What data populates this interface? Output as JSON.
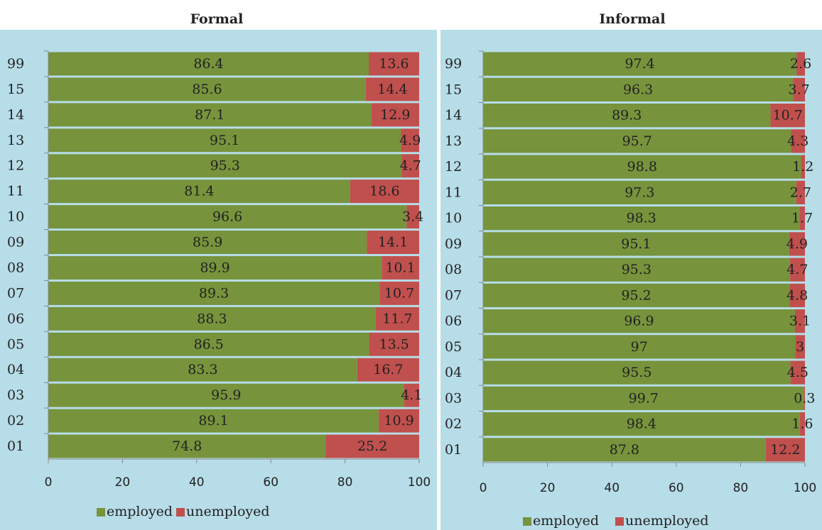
{
  "chart_data": [
    {
      "type": "bar",
      "orientation": "horizontal",
      "stacked": true,
      "title": "Formal",
      "categories": [
        "99",
        "15",
        "14",
        "13",
        "12",
        "11",
        "10",
        "09",
        "08",
        "07",
        "06",
        "05",
        "04",
        "03",
        "02",
        "01"
      ],
      "series": [
        {
          "name": "employed",
          "color": "#77933c",
          "values": [
            86.4,
            85.6,
            87.1,
            95.1,
            95.3,
            81.4,
            96.6,
            85.9,
            89.9,
            89.3,
            88.3,
            86.5,
            83.3,
            95.9,
            89.1,
            74.8
          ]
        },
        {
          "name": "unemployed",
          "color": "#c0504d",
          "values": [
            13.6,
            14.4,
            12.9,
            4.9,
            4.7,
            18.6,
            3.4,
            14.1,
            10.1,
            10.7,
            11.7,
            13.5,
            16.7,
            4.1,
            10.9,
            25.2
          ]
        }
      ],
      "xlim": [
        0,
        100
      ],
      "xticks": [
        0,
        20,
        40,
        60,
        80,
        100
      ],
      "legend": "bottom"
    },
    {
      "type": "bar",
      "orientation": "horizontal",
      "stacked": true,
      "title": "Informal",
      "categories": [
        "99",
        "15",
        "14",
        "13",
        "12",
        "11",
        "10",
        "09",
        "08",
        "07",
        "06",
        "05",
        "04",
        "03",
        "02",
        "01"
      ],
      "series": [
        {
          "name": "employed",
          "color": "#77933c",
          "values": [
            97.4,
            96.3,
            89.3,
            95.7,
            98.8,
            97.3,
            98.3,
            95.1,
            95.3,
            95.2,
            96.9,
            97,
            95.5,
            99.7,
            98.4,
            87.8
          ]
        },
        {
          "name": "unemployed",
          "color": "#c0504d",
          "values": [
            2.6,
            3.7,
            10.7,
            4.3,
            1.2,
            2.7,
            1.7,
            4.9,
            4.7,
            4.8,
            3.1,
            3,
            4.5,
            0.3,
            1.6,
            12.2
          ]
        }
      ],
      "xlim": [
        0,
        100
      ],
      "xticks": [
        0,
        20,
        40,
        60,
        80,
        100
      ],
      "legend": "bottom"
    }
  ]
}
